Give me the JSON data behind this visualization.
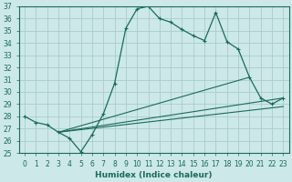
{
  "xlabel": "Humidex (Indice chaleur)",
  "bg_color": "#cce8e8",
  "grid_color": "#aacccc",
  "line_color": "#1a6b5a",
  "ylim": [
    25,
    37
  ],
  "xlim": [
    -0.5,
    23.5
  ],
  "yticks": [
    25,
    26,
    27,
    28,
    29,
    30,
    31,
    32,
    33,
    34,
    35,
    36,
    37
  ],
  "xticks": [
    0,
    1,
    2,
    3,
    4,
    5,
    6,
    7,
    8,
    9,
    10,
    11,
    12,
    13,
    14,
    15,
    16,
    17,
    18,
    19,
    20,
    21,
    22,
    23
  ],
  "line1_x": [
    0,
    1,
    2,
    3,
    4,
    5,
    6,
    7,
    8,
    9,
    10,
    11,
    12,
    13,
    14,
    15,
    16,
    17,
    18,
    19,
    20,
    21,
    22,
    23
  ],
  "line1_y": [
    28.0,
    27.5,
    27.3,
    26.7,
    26.2,
    25.1,
    26.5,
    28.2,
    30.7,
    35.2,
    36.8,
    37.0,
    36.0,
    35.7,
    35.1,
    34.6,
    34.2,
    36.5,
    34.1,
    33.5,
    31.2,
    29.5,
    29.0,
    29.5
  ],
  "line2_x": [
    3,
    23
  ],
  "line2_y": [
    26.7,
    28.8
  ],
  "line3_x": [
    3,
    23
  ],
  "line3_y": [
    26.7,
    29.5
  ],
  "line4_x": [
    3,
    20
  ],
  "line4_y": [
    26.7,
    31.2
  ],
  "xlabel_fontsize": 6.5,
  "tick_fontsize": 5.5
}
